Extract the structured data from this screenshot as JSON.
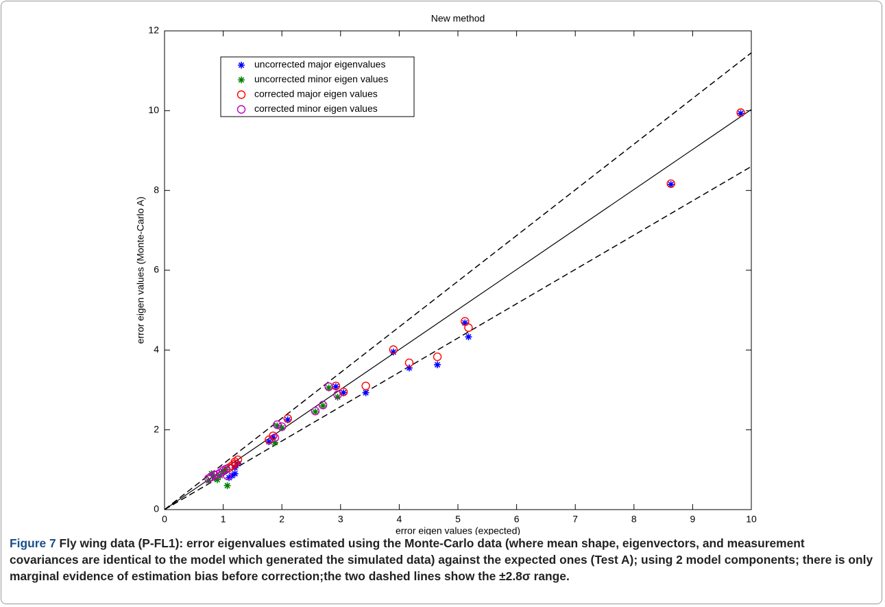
{
  "chart_data": {
    "type": "scatter",
    "title": "New method",
    "x_label": "error eigen values (expected)",
    "y_label": "error eigen values (Monte-Carlo A)",
    "xlim": [
      0,
      10
    ],
    "ylim": [
      0,
      12
    ],
    "xticks": [
      0,
      1,
      2,
      3,
      4,
      5,
      6,
      7,
      8,
      9,
      10
    ],
    "yticks": [
      0,
      2,
      4,
      6,
      8,
      10,
      12
    ],
    "legend": "top-left",
    "series": [
      {
        "name": "uncorrected major eigenvalues",
        "color": "#0000ff",
        "marker": "asterisk",
        "x": [
          9.82,
          8.63,
          5.12,
          5.18,
          4.65,
          4.17,
          3.9,
          3.43,
          3.05,
          2.92,
          2.1,
          1.78,
          1.85,
          1.25,
          1.2,
          1.15,
          1.1,
          1.2
        ],
        "values": [
          9.93,
          8.15,
          4.68,
          4.33,
          3.63,
          3.55,
          3.95,
          2.93,
          2.93,
          3.08,
          2.25,
          1.7,
          1.8,
          1.15,
          1.05,
          0.85,
          0.8,
          0.9
        ]
      },
      {
        "name": "uncorrected minor eigen values",
        "color": "#008000",
        "marker": "asterisk",
        "x": [
          2.8,
          2.95,
          2.7,
          2.57,
          2.0,
          1.92,
          1.88,
          1.07,
          0.8,
          0.75,
          0.9,
          0.95,
          1.0,
          0.85,
          1.05
        ],
        "values": [
          3.05,
          2.82,
          2.6,
          2.45,
          2.05,
          2.1,
          1.68,
          0.6,
          0.9,
          0.72,
          0.75,
          0.85,
          0.95,
          0.8,
          1.0
        ]
      },
      {
        "name": "corrected major eigen values",
        "color": "#ff0000",
        "marker": "circle",
        "x": [
          9.82,
          8.63,
          5.12,
          5.18,
          4.65,
          4.17,
          3.9,
          3.43,
          3.05,
          2.92,
          2.1,
          1.78,
          1.85,
          1.25,
          1.2,
          1.15,
          1.1,
          1.2
        ],
        "values": [
          9.95,
          8.17,
          4.72,
          4.56,
          3.83,
          3.68,
          4.01,
          3.1,
          2.95,
          3.1,
          2.28,
          1.75,
          1.85,
          1.25,
          1.15,
          1.1,
          1.05,
          1.2
        ]
      },
      {
        "name": "corrected minor eigen values",
        "color": "#bf00bf",
        "marker": "circle",
        "x": [
          2.8,
          2.95,
          2.7,
          2.57,
          2.0,
          1.92,
          1.88,
          1.07,
          0.8,
          0.75,
          0.9,
          0.95,
          1.0,
          0.85,
          1.05
        ],
        "values": [
          3.08,
          2.88,
          2.62,
          2.47,
          2.08,
          2.13,
          1.8,
          0.85,
          0.82,
          0.78,
          0.88,
          0.92,
          0.98,
          0.87,
          1.02
        ]
      }
    ],
    "reference_lines": [
      {
        "style": "solid",
        "x": [
          0,
          10
        ],
        "y": [
          0,
          10.03
        ]
      },
      {
        "style": "dashed",
        "x": [
          0,
          10
        ],
        "y": [
          0,
          11.45
        ]
      },
      {
        "style": "dashed",
        "x": [
          0,
          10
        ],
        "y": [
          0,
          8.6
        ]
      }
    ]
  },
  "caption": {
    "label": "Figure 7",
    "text": "Fly wing data (P-FL1): error eigenvalues estimated using the Monte-Carlo data (where mean shape, eigenvectors, and measurement covariances are identical to the model which generated the simulated data) against the expected ones (Test A); using 2 model components; there is only marginal evidence of estimation bias before correction;the two dashed lines show the ±2.8σ range."
  }
}
